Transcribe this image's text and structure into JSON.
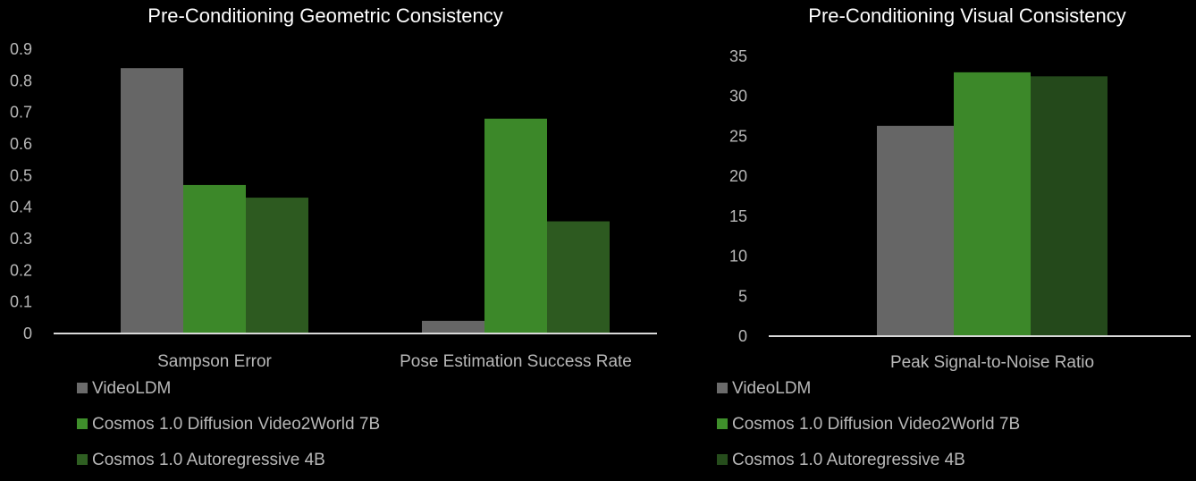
{
  "colors": {
    "background": "#000000",
    "axis": "#d9d9d9",
    "text": "#b8b8b8",
    "title": "#ffffff"
  },
  "chart_data": [
    {
      "type": "bar",
      "title": "Pre-Conditioning Geometric Consistency",
      "categories": [
        "Sampson Error",
        "Pose Estimation Success Rate"
      ],
      "ylim": [
        0,
        0.9
      ],
      "yticks": [
        "0",
        "0.1",
        "0.2",
        "0.3",
        "0.4",
        "0.5",
        "0.6",
        "0.7",
        "0.8",
        "0.9"
      ],
      "grid": false,
      "legend_position": "bottom-left",
      "series": [
        {
          "name": "VideoLDM",
          "values": [
            0.84,
            0.04
          ],
          "color": "#6b6b6b"
        },
        {
          "name": "Cosmos 1.0 Diffusion Video2World 7B",
          "values": [
            0.47,
            0.68
          ],
          "color": "#3f8f2b"
        },
        {
          "name": "Cosmos 1.0 Autoregressive 4B",
          "values": [
            0.43,
            0.355
          ],
          "color": "#2f5f22"
        }
      ]
    },
    {
      "type": "bar",
      "title": "Pre-Conditioning Visual Consistency",
      "categories": [
        "Peak Signal-to-Noise Ratio"
      ],
      "ylim": [
        0,
        35
      ],
      "yticks": [
        "0",
        "5",
        "10",
        "15",
        "20",
        "25",
        "30",
        "35"
      ],
      "grid": false,
      "legend_position": "bottom-left",
      "series": [
        {
          "name": "VideoLDM",
          "values": [
            26.3
          ],
          "color": "#6b6b6b"
        },
        {
          "name": "Cosmos 1.0 Diffusion Video2World 7B",
          "values": [
            33.0
          ],
          "color": "#3f8f2b"
        },
        {
          "name": "Cosmos 1.0 Autoregressive 4B",
          "values": [
            32.5
          ],
          "color": "#264d1c"
        }
      ]
    }
  ]
}
